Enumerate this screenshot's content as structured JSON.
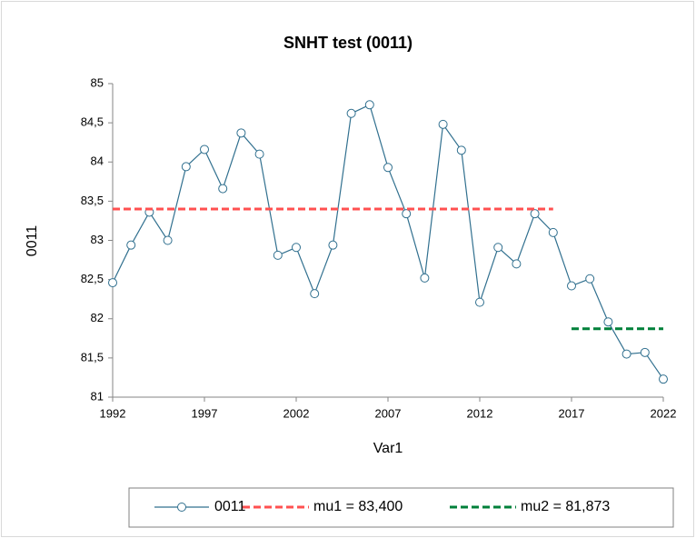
{
  "chart_data": {
    "type": "line",
    "title": "SNHT test (0011)",
    "x_label": "Var1",
    "y_label": "0011",
    "xlim": [
      1992,
      2022
    ],
    "xticks": [
      1992,
      1997,
      2002,
      2007,
      2012,
      2017,
      2022
    ],
    "ylim": [
      81,
      85
    ],
    "yticks": [
      81,
      {
        "value": 81.5,
        "label": "81,5"
      },
      82,
      {
        "value": 82.5,
        "label": "82,5"
      },
      83,
      {
        "value": 83.5,
        "label": "83,5"
      },
      84,
      {
        "value": 84.5,
        "label": "84,5"
      },
      85
    ],
    "legend": "bottom",
    "series": [
      {
        "name": "0011",
        "color": "#31708f",
        "marker": "circle",
        "x": [
          1992,
          1993,
          1994,
          1995,
          1996,
          1997,
          1998,
          1999,
          2000,
          2001,
          2002,
          2003,
          2004,
          2005,
          2006,
          2007,
          2008,
          2009,
          2010,
          2011,
          2012,
          2013,
          2014,
          2015,
          2016,
          2017,
          2018,
          2019,
          2020,
          2021,
          2022
        ],
        "values": [
          82.46,
          82.94,
          83.36,
          83.0,
          83.94,
          84.16,
          83.66,
          84.37,
          84.1,
          82.81,
          82.91,
          82.32,
          82.94,
          84.62,
          84.73,
          83.93,
          83.34,
          82.52,
          84.48,
          84.15,
          82.21,
          82.91,
          82.7,
          83.34,
          83.1,
          82.42,
          82.51,
          81.96,
          81.55,
          81.57,
          81.23
        ]
      },
      {
        "name": "mu1 = 83,400",
        "color": "#ff5050",
        "dashed": true,
        "x": [
          1992,
          2016
        ],
        "values": [
          83.4,
          83.4
        ]
      },
      {
        "name": "mu2 = 81,873",
        "color": "#00803a",
        "dashed": true,
        "x": [
          2017,
          2022
        ],
        "values": [
          81.873,
          81.873
        ]
      }
    ]
  }
}
